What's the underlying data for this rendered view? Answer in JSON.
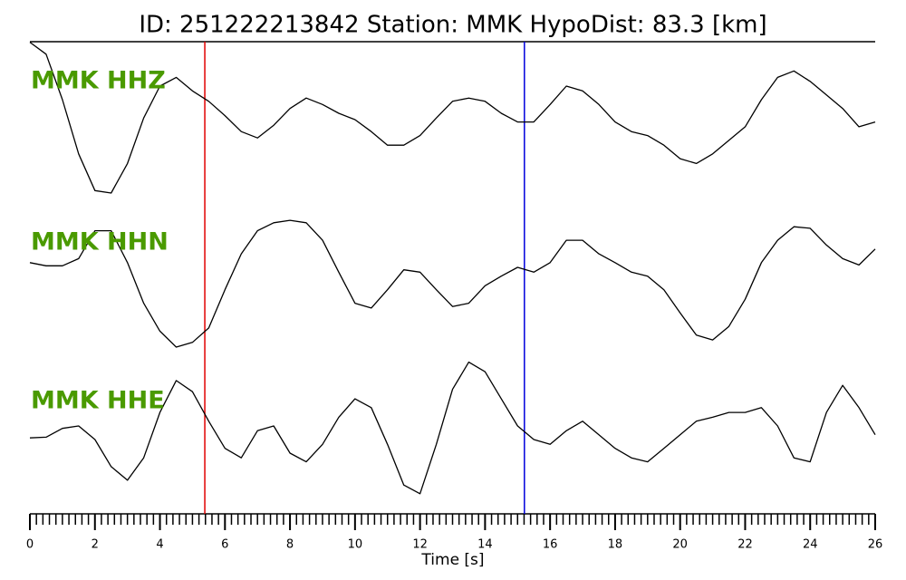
{
  "chart_data": {
    "type": "line",
    "title": "ID: 251222213842   Station: MMK   HypoDist:    83.3 [km]",
    "xlabel": "Time [s]",
    "xlim": [
      0,
      26
    ],
    "xticks": [
      0,
      2,
      4,
      6,
      8,
      10,
      12,
      14,
      16,
      18,
      20,
      22,
      24,
      26
    ],
    "xminorticks": [
      0.2,
      0.4,
      0.6,
      0.8,
      1,
      1.2,
      1.4,
      1.6,
      1.8,
      2.2,
      2.4,
      2.6,
      2.8,
      3,
      3.2,
      3.4,
      3.6,
      3.8,
      4.2,
      4.4,
      4.6,
      4.8,
      5,
      5.2,
      5.4,
      5.6,
      5.8,
      6.2,
      6.4,
      6.6,
      6.8,
      7,
      7.2,
      7.4,
      7.6,
      7.8,
      8.2,
      8.4,
      8.6,
      8.8,
      9,
      9.2,
      9.4,
      9.6,
      9.8,
      10.2,
      10.4,
      10.6,
      10.8,
      11,
      11.2,
      11.4,
      11.6,
      11.8,
      12.2,
      12.4,
      12.6,
      12.8,
      13,
      13.2,
      13.4,
      13.6,
      13.8,
      14.2,
      14.4,
      14.6,
      14.8,
      15,
      15.2,
      15.4,
      15.6,
      15.8,
      16.2,
      16.4,
      16.6,
      16.8,
      17,
      17.2,
      17.4,
      17.6,
      17.8,
      18.2,
      18.4,
      18.6,
      18.8,
      19,
      19.2,
      19.4,
      19.6,
      19.8,
      20.2,
      20.4,
      20.6,
      20.8,
      21,
      21.2,
      21.4,
      21.6,
      21.8,
      22.2,
      22.4,
      22.6,
      22.8,
      23,
      23.2,
      23.4,
      23.6,
      23.8,
      24.2,
      24.4,
      24.6,
      24.8,
      25,
      25.2,
      25.4,
      25.6,
      25.8
    ],
    "ylim": [
      -1,
      1
    ],
    "label_color": "#4a9a00",
    "picks": [
      {
        "x": 5.38,
        "color": "#e00000"
      },
      {
        "x": 15.21,
        "color": "#0000dd"
      }
    ],
    "x": [
      0,
      0.5,
      1,
      1.5,
      2,
      2.5,
      3,
      3.5,
      4,
      4.5,
      5,
      5.5,
      6,
      6.5,
      7,
      7.5,
      8,
      8.5,
      9,
      9.5,
      10,
      10.5,
      11,
      11.5,
      12,
      12.5,
      13,
      13.5,
      14,
      14.5,
      15,
      15.5,
      16,
      16.5,
      17,
      17.5,
      18,
      18.5,
      19,
      19.5,
      20,
      20.5,
      21,
      21.5,
      22,
      22.5,
      23,
      23.5,
      24,
      24.5,
      25,
      25.5,
      26
    ],
    "series": [
      {
        "name": "MMK HHZ",
        "color": "#000000",
        "values": [
          0.97,
          0.82,
          0.25,
          -0.43,
          -0.89,
          -0.92,
          -0.55,
          0.02,
          0.42,
          0.53,
          0.36,
          0.23,
          0.05,
          -0.15,
          -0.23,
          -0.07,
          0.14,
          0.27,
          0.19,
          0.08,
          0,
          -0.15,
          -0.32,
          -0.32,
          -0.2,
          0.02,
          0.23,
          0.27,
          0.23,
          0.08,
          -0.03,
          -0.03,
          0.19,
          0.42,
          0.36,
          0.19,
          -0.03,
          -0.15,
          -0.2,
          -0.32,
          -0.49,
          -0.55,
          -0.43,
          -0.26,
          -0.09,
          0.25,
          0.53,
          0.61,
          0.48,
          0.31,
          0.14,
          -0.09,
          -0.03
        ]
      },
      {
        "name": "MMK HHN",
        "color": "#000000",
        "values": [
          0.23,
          0.19,
          0.19,
          0.28,
          0.63,
          0.63,
          0.23,
          -0.28,
          -0.63,
          -0.83,
          -0.77,
          -0.59,
          -0.11,
          0.34,
          0.63,
          0.73,
          0.76,
          0.73,
          0.51,
          0.11,
          -0.28,
          -0.34,
          -0.11,
          0.14,
          0.11,
          -0.11,
          -0.32,
          -0.28,
          -0.06,
          0.06,
          0.17,
          0.11,
          0.23,
          0.51,
          0.51,
          0.34,
          0.23,
          0.11,
          0.06,
          -0.11,
          -0.4,
          -0.68,
          -0.74,
          -0.57,
          -0.23,
          0.23,
          0.51,
          0.68,
          0.66,
          0.45,
          0.28,
          0.2,
          0.4
        ]
      },
      {
        "name": "MMK HHE",
        "color": "#000000",
        "values": [
          0.02,
          0.03,
          0.14,
          0.17,
          0,
          -0.34,
          -0.51,
          -0.23,
          0.34,
          0.74,
          0.6,
          0.23,
          -0.11,
          -0.23,
          0.11,
          0.17,
          -0.17,
          -0.28,
          -0.06,
          0.28,
          0.51,
          0.4,
          -0.06,
          -0.57,
          -0.68,
          -0.06,
          0.63,
          0.97,
          0.85,
          0.51,
          0.17,
          0,
          -0.06,
          0.11,
          0.23,
          0.06,
          -0.11,
          -0.23,
          -0.28,
          -0.11,
          0.06,
          0.23,
          0.28,
          0.34,
          0.34,
          0.4,
          0.17,
          -0.23,
          -0.28,
          0.34,
          0.68,
          0.4,
          0.06
        ]
      }
    ]
  }
}
